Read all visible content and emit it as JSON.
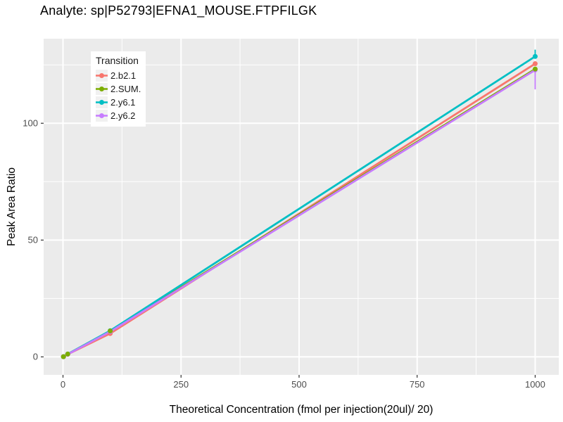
{
  "chart_data": {
    "type": "line",
    "title": "Analyte: sp|P52793|EFNA1_MOUSE.FTPFILGK",
    "xlabel": "Theoretical Concentration (fmol per injection(20ul)/ 20)",
    "ylabel": "Peak Area Ratio",
    "legend_title": "Transition",
    "legend_position": "inside-top-left",
    "panel_bg": "#EBEBEB",
    "grid_color": "#FFFFFF",
    "axis_text_color": "#4D4D4D",
    "tick_mark_color": "#333333",
    "xlim": [
      -41,
      1050
    ],
    "ylim": [
      -7.7,
      136.2
    ],
    "x_ticks": [
      0,
      250,
      500,
      750,
      1000
    ],
    "x_minor_ticks": [
      125,
      375,
      625,
      875
    ],
    "y_ticks": [
      0,
      50,
      100
    ],
    "y_minor_ticks": [
      25,
      75,
      125
    ],
    "x": [
      1,
      10,
      100,
      1000
    ],
    "series": [
      {
        "name": "2.b2.1",
        "color": "#F8766D",
        "values": [
          0.1,
          1.1,
          10.0,
          125.5
        ],
        "errorbar": null
      },
      {
        "name": "2.SUM.",
        "color": "#7CAE00",
        "values": [
          0.1,
          1.2,
          11.1,
          123.2
        ],
        "errorbar": null
      },
      {
        "name": "2.y6.1",
        "color": "#00BFC4",
        "values": [
          0.1,
          1.2,
          11.2,
          128.6
        ],
        "errorbar": {
          "x": 1000,
          "low": 128.6,
          "high": 131.5
        }
      },
      {
        "name": "2.y6.2",
        "color": "#C77CFF",
        "values": [
          0.1,
          1.1,
          10.8,
          122.8
        ],
        "errorbar": {
          "x": 1000,
          "low": 114.5,
          "high": 122.8
        }
      }
    ],
    "point_draw_order": [
      0,
      2,
      3,
      1
    ]
  }
}
